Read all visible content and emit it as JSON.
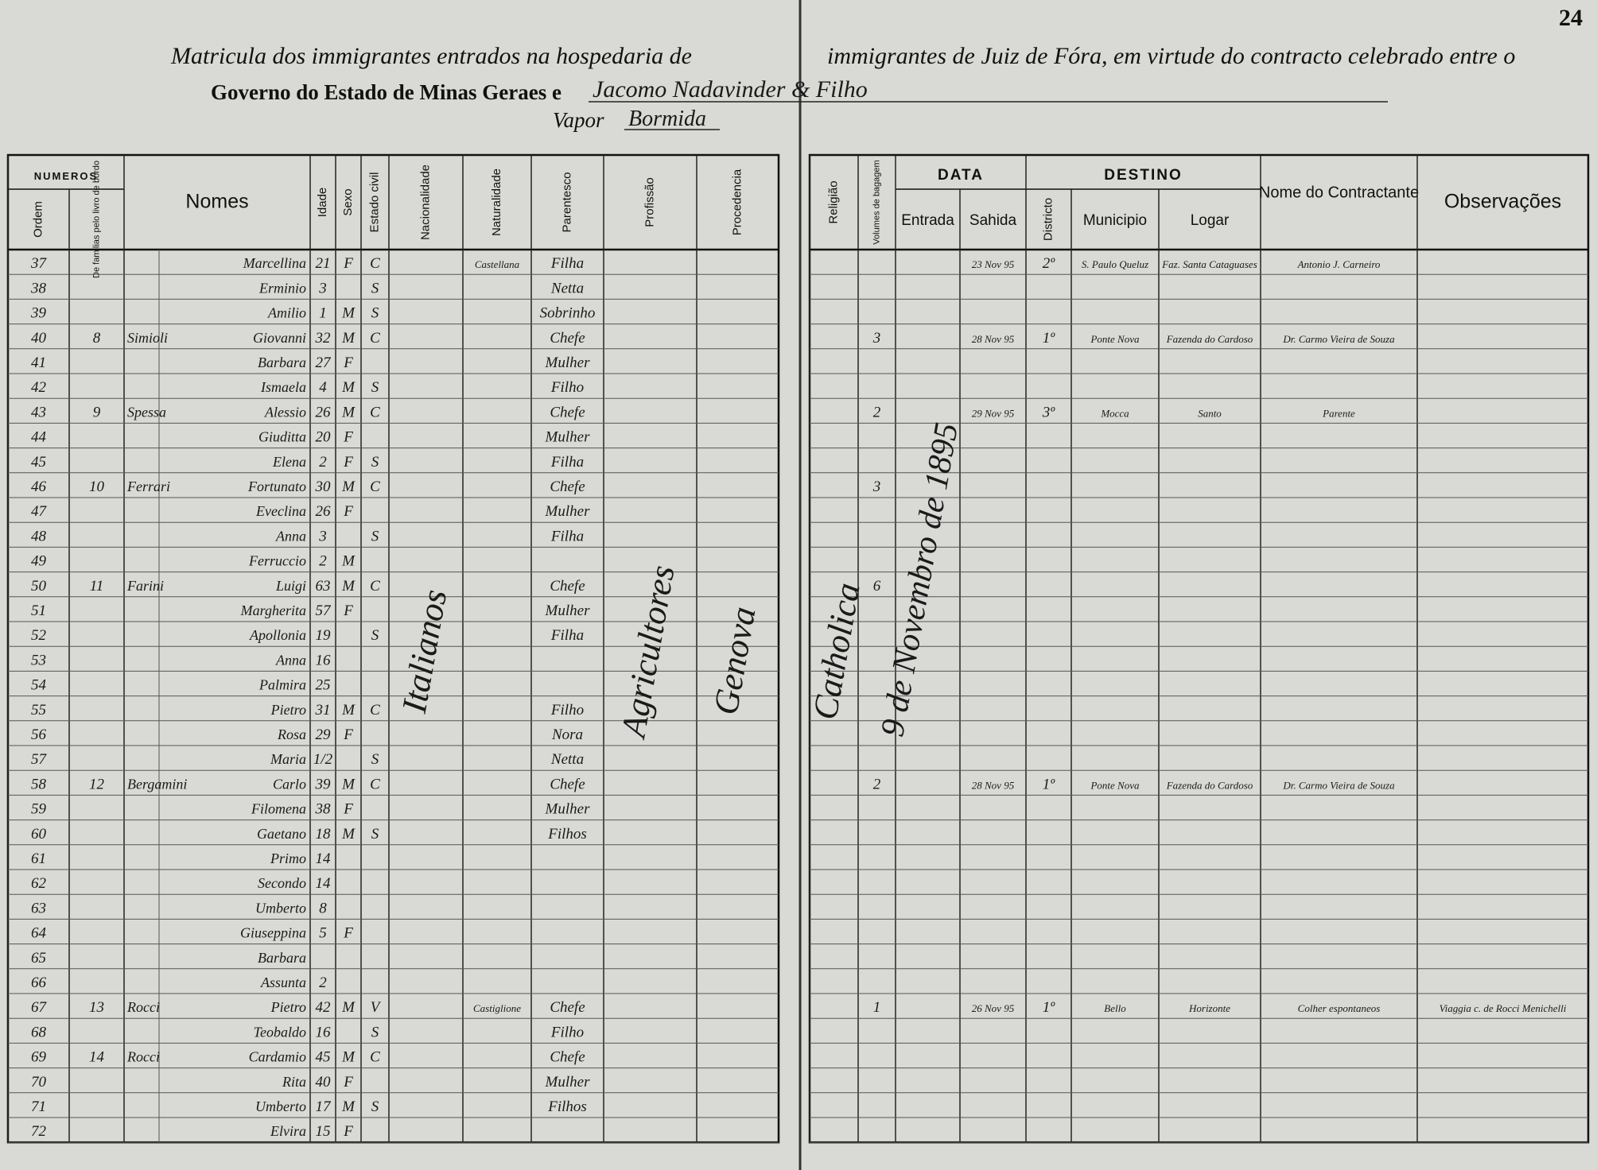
{
  "page_number": "24",
  "header": {
    "title_line1_left": "Matricula dos immigrantes entrados na hospedaria de",
    "title_line1_right": "immigrantes de Juiz de Fóra, em virtude do contracto celebrado entre o",
    "title_line2": "Governo do Estado de Minas Geraes e",
    "contractor": "Jacomo Nadavinder & Filho",
    "vapor_label": "Vapor",
    "vapor": "Bormida"
  },
  "table": {
    "group_headers": {
      "numeros": "NUMEROS",
      "data": "DATA",
      "destino": "DESTINO"
    },
    "columns": {
      "ordem": "Ordem",
      "familia": "De familias pelo livro de bordo",
      "nomes": "Nomes",
      "idade": "Idade",
      "sexo": "Sexo",
      "estado": "Estado civil",
      "nacionalidade": "Nacionalidade",
      "naturalidade": "Naturalidade",
      "parentesco": "Parentesco",
      "profissao": "Profissão",
      "procedencia": "Procedencia",
      "religiao": "Religião",
      "volumes": "Volumes de bagagem",
      "entrada": "Entrada",
      "sahida": "Sahida",
      "districto": "Districto",
      "municipio": "Municipio",
      "logar": "Logar",
      "contratante": "Nome do Contractante",
      "observacoes": "Observações"
    },
    "vertical_entries": {
      "nacionalidade": "Italianos",
      "profissao": "Agricultores",
      "procedencia": "Genova",
      "religiao": "Catholica",
      "entrada": "9 de Novembro de 1895"
    },
    "rows": [
      {
        "ordem": "37",
        "nome": "Marcellina",
        "idade": "21",
        "sexo": "F",
        "estado": "C",
        "naturalidade": "Castellana",
        "parentesco": "Filha",
        "sahida": "23 Nov 95",
        "districto": "2º",
        "municipio": "S. Paulo Queluz",
        "logar": "Faz. Santa Cataguases",
        "contratante": "Antonio J. Carneiro"
      },
      {
        "ordem": "38",
        "nome": "Erminio",
        "idade": "3",
        "estado": "S",
        "parentesco": "Netta"
      },
      {
        "ordem": "39",
        "nome": "Amilio",
        "idade": "1",
        "sexo": "M",
        "estado": "S",
        "parentesco": "Sobrinho"
      },
      {
        "ordem": "40",
        "familia": "8",
        "sobrenome": "Simioli",
        "nome": "Giovanni",
        "idade": "32",
        "sexo": "M",
        "estado": "C",
        "parentesco": "Chefe",
        "volumes": "3",
        "sahida": "28 Nov 95",
        "districto": "1º",
        "municipio": "Ponte Nova",
        "logar": "Fazenda do Cardoso",
        "contratante": "Dr. Carmo Vieira de Souza"
      },
      {
        "ordem": "41",
        "nome": "Barbara",
        "idade": "27",
        "sexo": "F",
        "parentesco": "Mulher"
      },
      {
        "ordem": "42",
        "nome": "Ismaela",
        "idade": "4",
        "sexo": "M",
        "estado": "S",
        "parentesco": "Filho"
      },
      {
        "ordem": "43",
        "familia": "9",
        "sobrenome": "Spessa",
        "nome": "Alessio",
        "idade": "26",
        "sexo": "M",
        "estado": "C",
        "parentesco": "Chefe",
        "volumes": "2",
        "sahida": "29 Nov 95",
        "districto": "3º",
        "municipio": "Mocca",
        "logar": "Santo",
        "contratante": "Parente"
      },
      {
        "ordem": "44",
        "nome": "Giuditta",
        "idade": "20",
        "sexo": "F",
        "parentesco": "Mulher"
      },
      {
        "ordem": "45",
        "nome": "Elena",
        "idade": "2",
        "sexo": "F",
        "estado": "S",
        "parentesco": "Filha"
      },
      {
        "ordem": "46",
        "familia": "10",
        "sobrenome": "Ferrari",
        "nome": "Fortunato",
        "idade": "30",
        "sexo": "M",
        "estado": "C",
        "parentesco": "Chefe",
        "volumes": "3"
      },
      {
        "ordem": "47",
        "nome": "Eveclina",
        "idade": "26",
        "sexo": "F",
        "parentesco": "Mulher"
      },
      {
        "ordem": "48",
        "nome": "Anna",
        "idade": "3",
        "estado": "S",
        "parentesco": "Filha"
      },
      {
        "ordem": "49",
        "nome": "Ferruccio",
        "idade": "2",
        "sexo": "M"
      },
      {
        "ordem": "50",
        "familia": "11",
        "sobrenome": "Farini",
        "nome": "Luigi",
        "idade": "63",
        "sexo": "M",
        "estado": "C",
        "parentesco": "Chefe",
        "volumes": "6"
      },
      {
        "ordem": "51",
        "nome": "Margherita",
        "idade": "57",
        "sexo": "F",
        "parentesco": "Mulher"
      },
      {
        "ordem": "52",
        "nome": "Apollonia",
        "idade": "19",
        "estado": "S",
        "parentesco": "Filha"
      },
      {
        "ordem": "53",
        "nome": "Anna",
        "idade": "16"
      },
      {
        "ordem": "54",
        "nome": "Palmira",
        "idade": "25"
      },
      {
        "ordem": "55",
        "nome": "Pietro",
        "idade": "31",
        "sexo": "M",
        "estado": "C",
        "parentesco": "Filho"
      },
      {
        "ordem": "56",
        "nome": "Rosa",
        "idade": "29",
        "sexo": "F",
        "parentesco": "Nora"
      },
      {
        "ordem": "57",
        "nome": "Maria",
        "idade": "1/2",
        "estado": "S",
        "parentesco": "Netta"
      },
      {
        "ordem": "58",
        "familia": "12",
        "sobrenome": "Bergamini",
        "nome": "Carlo",
        "idade": "39",
        "sexo": "M",
        "estado": "C",
        "parentesco": "Chefe",
        "volumes": "2",
        "sahida": "28 Nov 95",
        "districto": "1º",
        "municipio": "Ponte Nova",
        "logar": "Fazenda do Cardoso",
        "contratante": "Dr. Carmo Vieira de Souza"
      },
      {
        "ordem": "59",
        "nome": "Filomena",
        "idade": "38",
        "sexo": "F",
        "parentesco": "Mulher"
      },
      {
        "ordem": "60",
        "nome": "Gaetano",
        "idade": "18",
        "sexo": "M",
        "estado": "S",
        "parentesco": "Filhos"
      },
      {
        "ordem": "61",
        "nome": "Primo",
        "idade": "14"
      },
      {
        "ordem": "62",
        "nome": "Secondo",
        "idade": "14"
      },
      {
        "ordem": "63",
        "nome": "Umberto",
        "idade": "8"
      },
      {
        "ordem": "64",
        "nome": "Giuseppina",
        "idade": "5",
        "sexo": "F"
      },
      {
        "ordem": "65",
        "nome": "Barbara"
      },
      {
        "ordem": "66",
        "nome": "Assunta",
        "idade": "2"
      },
      {
        "ordem": "67",
        "familia": "13",
        "sobrenome": "Rocci",
        "nome": "Pietro",
        "idade": "42",
        "sexo": "M",
        "estado": "V",
        "naturalidade": "Castiglione",
        "parentesco": "Chefe",
        "volumes": "1",
        "sahida": "26 Nov 95",
        "districto": "1º",
        "municipio": "Bello",
        "logar": "Horizonte",
        "contratante": "Colher espontaneos",
        "observacoes": "Viaggia c. de Rocci Menichelli"
      },
      {
        "ordem": "68",
        "nome": "Teobaldo",
        "idade": "16",
        "estado": "S",
        "parentesco": "Filho"
      },
      {
        "ordem": "69",
        "familia": "14",
        "sobrenome": "Rocci",
        "nome": "Cardamio",
        "idade": "45",
        "sexo": "M",
        "estado": "C",
        "parentesco": "Chefe"
      },
      {
        "ordem": "70",
        "nome": "Rita",
        "idade": "40",
        "sexo": "F",
        "parentesco": "Mulher"
      },
      {
        "ordem": "71",
        "nome": "Umberto",
        "idade": "17",
        "sexo": "M",
        "estado": "S",
        "parentesco": "Filhos"
      },
      {
        "ordem": "72",
        "nome": "Elvira",
        "idade": "15",
        "sexo": "F"
      }
    ]
  }
}
